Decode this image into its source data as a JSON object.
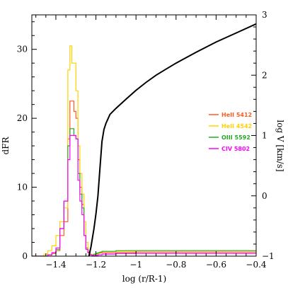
{
  "chart_data": {
    "type": "line",
    "title": "",
    "xlabel": "log (r/R-1)",
    "ylabel": "dFR",
    "y2label": "log V [km/s]",
    "xlim": [
      -1.52,
      -0.4
    ],
    "ylim": [
      0,
      35
    ],
    "y2lim": [
      -1,
      3
    ],
    "xticks": [
      -1.4,
      -1.2,
      -1,
      -0.8,
      -0.6,
      -0.4
    ],
    "xtick_labels": [
      "−1.4",
      "−1.2",
      "−1",
      "−0.8",
      "−0.6",
      "−0.4"
    ],
    "yticks": [
      0,
      10,
      20,
      30
    ],
    "yticks_labels": [
      "0",
      "10",
      "20",
      "30"
    ],
    "y2ticks": [
      -1,
      0,
      1,
      2,
      3
    ],
    "y2tick_labels": [
      "−1",
      "0",
      "1",
      "2",
      "3"
    ],
    "grid": false,
    "legend_position": "right",
    "x": [
      -1.52,
      -1.46,
      -1.44,
      -1.42,
      -1.4,
      -1.38,
      -1.36,
      -1.34,
      -1.33,
      -1.32,
      -1.31,
      -1.3,
      -1.29,
      -1.28,
      -1.27,
      -1.26,
      -1.25,
      -1.24,
      -1.23,
      -1.22,
      -1.21,
      -1.2,
      -1.19,
      -1.18,
      -1.17,
      -1.16,
      -1.1,
      -1.0,
      -0.9,
      -0.8,
      -0.7,
      -0.6,
      -0.5,
      -0.4
    ],
    "series": [
      {
        "name": "HeII 5412",
        "color": "#ff5a1f",
        "values": [
          0,
          0,
          0.2,
          0.4,
          0.8,
          3,
          5,
          17,
          22.5,
          22.5,
          21,
          20,
          14,
          10,
          7.5,
          3,
          1.2,
          0.6,
          0.3,
          0.2,
          0.3,
          0.3,
          0.4,
          0.5,
          0.5,
          0.5,
          0.5,
          0.6,
          0.6,
          0.6,
          0.6,
          0.6,
          0.6,
          0.6
        ]
      },
      {
        "name": "HeII 4542",
        "color": "#ffd200",
        "values": [
          0,
          0.3,
          0.8,
          1.5,
          3,
          5,
          7,
          27,
          30.5,
          28,
          28,
          24,
          16,
          12,
          9,
          5,
          2,
          0.8,
          0.3,
          0.2,
          0.3,
          0.3,
          0.4,
          0.6,
          0.7,
          0.7,
          0.7,
          0.8,
          0.8,
          0.8,
          0.8,
          0.8,
          0.8,
          0.8
        ]
      },
      {
        "name": "OIII 5592",
        "color": "#22aa22",
        "values": [
          0,
          0,
          0.2,
          0.5,
          1,
          4,
          8,
          16,
          18.5,
          18.5,
          17.5,
          17,
          12,
          9,
          7,
          3,
          1,
          0.5,
          0.2,
          0.2,
          0.3,
          0.4,
          0.5,
          0.6,
          0.7,
          0.7,
          0.8,
          0.8,
          0.8,
          0.8,
          0.8,
          0.8,
          0.8,
          0.8
        ]
      },
      {
        "name": "CIV 5802",
        "color": "#ff00ff",
        "values": [
          0,
          0,
          0.2,
          0.5,
          1.2,
          4,
          8,
          14,
          17.5,
          17.5,
          17.5,
          17,
          11,
          8,
          6,
          3,
          1,
          0.5,
          0.2,
          0.1,
          0.1,
          0.1,
          0.2,
          0.2,
          0.3,
          0.3,
          0.4,
          0.4,
          0.4,
          0.4,
          0.4,
          0.4,
          0.4,
          0.4
        ]
      }
    ],
    "velocity_series": {
      "name": "log V",
      "color": "#000000",
      "axis": "right",
      "x": [
        -1.235,
        -1.225,
        -1.21,
        -1.2,
        -1.19,
        -1.18,
        -1.17,
        -1.16,
        -1.15,
        -1.13,
        -1.1,
        -1.05,
        -1.0,
        -0.95,
        -0.9,
        -0.85,
        -0.8,
        -0.7,
        -0.6,
        -0.5,
        -0.4
      ],
      "values": [
        -1.0,
        -0.85,
        -0.55,
        -0.3,
        0.0,
        0.45,
        0.9,
        1.1,
        1.2,
        1.35,
        1.45,
        1.6,
        1.75,
        1.88,
        2.0,
        2.1,
        2.2,
        2.38,
        2.55,
        2.7,
        2.85
      ]
    }
  }
}
